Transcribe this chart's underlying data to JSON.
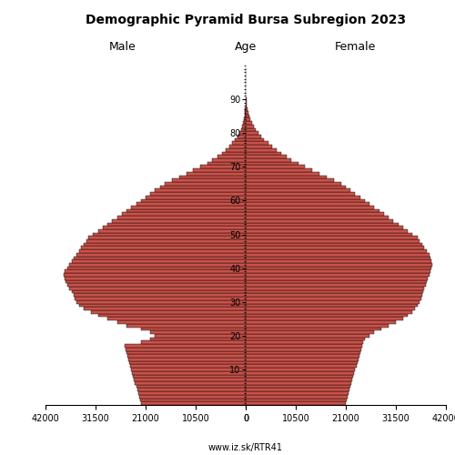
{
  "title": "Demographic Pyramid Bursa Subregion 2023",
  "xlabel_left": "Male",
  "xlabel_right": "Female",
  "ylabel": "Age",
  "source": "www.iz.sk/RTR41",
  "xlim": 42000,
  "bar_color": "#C8524A",
  "bar_edge_color": "#000000",
  "ages": [
    0,
    1,
    2,
    3,
    4,
    5,
    6,
    7,
    8,
    9,
    10,
    11,
    12,
    13,
    14,
    15,
    16,
    17,
    18,
    19,
    20,
    21,
    22,
    23,
    24,
    25,
    26,
    27,
    28,
    29,
    30,
    31,
    32,
    33,
    34,
    35,
    36,
    37,
    38,
    39,
    40,
    41,
    42,
    43,
    44,
    45,
    46,
    47,
    48,
    49,
    50,
    51,
    52,
    53,
    54,
    55,
    56,
    57,
    58,
    59,
    60,
    61,
    62,
    63,
    64,
    65,
    66,
    67,
    68,
    69,
    70,
    71,
    72,
    73,
    74,
    75,
    76,
    77,
    78,
    79,
    80,
    81,
    82,
    83,
    84,
    85,
    86,
    87,
    88,
    89,
    90,
    91,
    92,
    93,
    94,
    95,
    96,
    97,
    98,
    99
  ],
  "male": [
    22000,
    22200,
    22400,
    22600,
    22800,
    23000,
    23200,
    23400,
    23600,
    23800,
    24000,
    24200,
    24400,
    24600,
    24800,
    25000,
    25200,
    25400,
    22000,
    20000,
    19000,
    20000,
    22000,
    25000,
    27000,
    29000,
    31000,
    32500,
    34000,
    35000,
    35500,
    35800,
    36000,
    36500,
    37000,
    37500,
    37800,
    38000,
    38200,
    38000,
    37500,
    37000,
    36500,
    36000,
    35500,
    35000,
    34500,
    34000,
    33500,
    33000,
    32000,
    31000,
    30000,
    29000,
    28000,
    27000,
    26000,
    25000,
    24000,
    23000,
    22000,
    21000,
    20000,
    19000,
    18000,
    17000,
    15500,
    14000,
    12500,
    11000,
    9500,
    8000,
    7000,
    6000,
    5000,
    4200,
    3500,
    2800,
    2200,
    1700,
    1300,
    950,
    700,
    520,
    380,
    270,
    190,
    130,
    85,
    50,
    28,
    15,
    8,
    4,
    2,
    1,
    0,
    0,
    0,
    0
  ],
  "female": [
    21000,
    21200,
    21400,
    21600,
    21800,
    22000,
    22200,
    22400,
    22600,
    22800,
    23000,
    23200,
    23400,
    23600,
    23800,
    24000,
    24200,
    24400,
    24600,
    25000,
    26000,
    27000,
    28500,
    30000,
    31500,
    33000,
    34000,
    35000,
    35500,
    36000,
    36500,
    36800,
    37000,
    37200,
    37500,
    37800,
    38000,
    38200,
    38500,
    38800,
    39000,
    39200,
    39000,
    38800,
    38500,
    38000,
    37500,
    37000,
    36500,
    36000,
    35000,
    34000,
    33000,
    32000,
    31000,
    30000,
    29000,
    28000,
    27000,
    26000,
    25000,
    24000,
    23000,
    22000,
    21000,
    20000,
    18500,
    17000,
    15500,
    14000,
    12500,
    11000,
    9500,
    8500,
    7500,
    6500,
    5500,
    4700,
    3900,
    3200,
    2600,
    2100,
    1650,
    1250,
    950,
    720,
    540,
    390,
    270,
    180,
    110,
    65,
    35,
    18,
    8,
    3,
    1,
    0,
    0,
    0
  ]
}
